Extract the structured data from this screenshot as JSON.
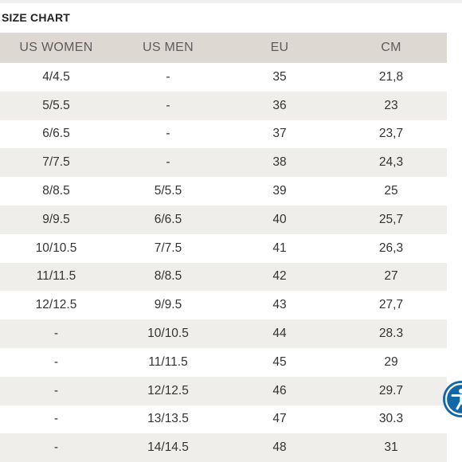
{
  "title": "SIZE CHART",
  "table": {
    "headers": [
      "US WOMEN",
      "US MEN",
      "EU",
      "CM"
    ],
    "rows": [
      [
        "4/4.5",
        "-",
        "35",
        "21,8"
      ],
      [
        "5/5.5",
        "-",
        "36",
        "23"
      ],
      [
        "6/6.5",
        "-",
        "37",
        "23,7"
      ],
      [
        "7/7.5",
        "-",
        "38",
        "24,3"
      ],
      [
        "8/8.5",
        "5/5.5",
        "39",
        "25"
      ],
      [
        "9/9.5",
        "6/6.5",
        "40",
        "25,7"
      ],
      [
        "10/10.5",
        "7/7.5",
        "41",
        "26,3"
      ],
      [
        "11/11.5",
        "8/8.5",
        "42",
        "27"
      ],
      [
        "12/12.5",
        "9/9.5",
        "43",
        "27,7"
      ],
      [
        "-",
        "10/10.5",
        "44",
        "28.3"
      ],
      [
        "-",
        "11/11.5",
        "45",
        "29"
      ],
      [
        "-",
        "12/12.5",
        "46",
        "29.7"
      ],
      [
        "-",
        "13/13.5",
        "47",
        "30.3"
      ],
      [
        "-",
        "14/14.5",
        "48",
        "31"
      ]
    ]
  },
  "accessibility_button": {
    "icon": "accessibility-icon",
    "color": "#1267a8"
  }
}
